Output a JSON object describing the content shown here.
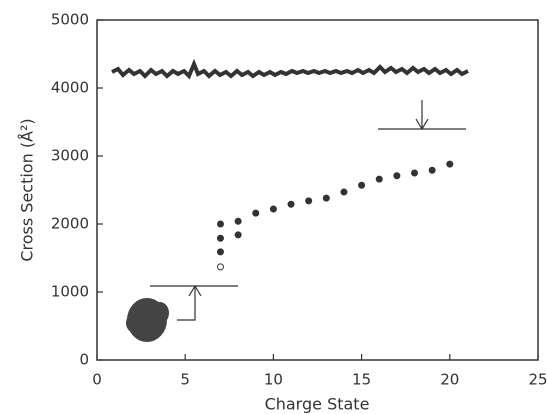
{
  "chart_data": {
    "type": "scatter",
    "x_label": "Charge State",
    "y_label": "Cross Section (Å²)",
    "xlim": [
      0,
      25
    ],
    "ylim": [
      0,
      5000
    ],
    "xticks": [
      0,
      5,
      10,
      15,
      20,
      25
    ],
    "yticks": [
      0,
      1000,
      2000,
      3000,
      4000,
      5000
    ],
    "series": [
      {
        "color": "#333333",
        "marker": "filled",
        "x": [
          7,
          7,
          7,
          8,
          8,
          9,
          10,
          11,
          12,
          13,
          14,
          15,
          16,
          17,
          18,
          19,
          20
        ],
        "values": [
          2000,
          1790,
          1590,
          2040,
          1840,
          2160,
          2220,
          2290,
          2340,
          2380,
          2470,
          2570,
          2660,
          2710,
          2750,
          2790,
          2880
        ]
      },
      {
        "color": "#333333",
        "marker": "open",
        "x": [
          7
        ],
        "values": [
          1370
        ]
      }
    ]
  }
}
